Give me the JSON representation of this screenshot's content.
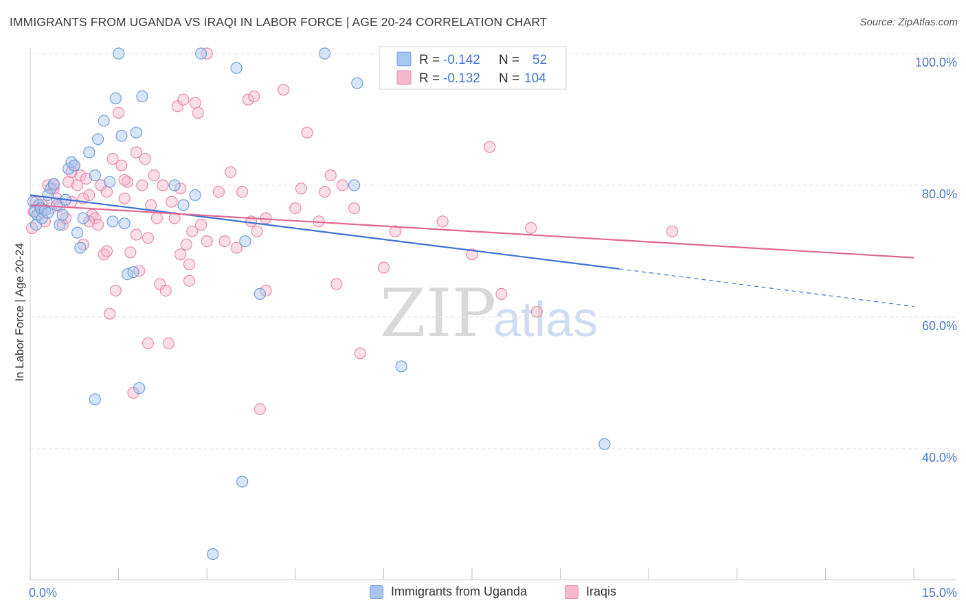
{
  "header": {
    "title": "IMMIGRANTS FROM UGANDA VS IRAQI IN LABOR FORCE | AGE 20-24 CORRELATION CHART",
    "source": "Source: ZipAtlas.com"
  },
  "colors": {
    "uganda_fill": "#a8c6ef",
    "uganda_stroke": "#6f9fdc",
    "uganda_line": "#3a72d4",
    "iraqi_fill": "#f5b8cc",
    "iraqi_stroke": "#e88aa8",
    "iraqi_line": "#e0668e",
    "tick_label": "#4a78c8",
    "grid": "#e3e3e3"
  },
  "legend": {
    "uganda": {
      "r_label": "R =",
      "r_value": "-0.142",
      "n_label": "N =",
      "n_value": "52"
    },
    "iraqi": {
      "r_label": "R =",
      "r_value": "-0.132",
      "n_label": "N =",
      "n_value": "104"
    }
  },
  "bottom_legend": {
    "uganda": "Immigrants from Uganda",
    "iraqi": "Iraqis"
  },
  "watermark": {
    "zip": "ZIP",
    "atlas": "atlas"
  },
  "chart_data": {
    "type": "scatter",
    "title": "IMMIGRANTS FROM UGANDA VS IRAQI IN LABOR FORCE | AGE 20-24 CORRELATION CHART",
    "xlabel": "",
    "ylabel": "In Labor Force | Age 20-24",
    "xlim": [
      0,
      15
    ],
    "ylim": [
      22,
      102
    ],
    "x_tick_labels": [
      {
        "value": 0,
        "label": "0.0%"
      },
      {
        "value": 15,
        "label": "15.0%"
      }
    ],
    "y_tick_labels": [
      {
        "value": 100,
        "label": "100.0%"
      },
      {
        "value": 80,
        "label": "80.0%"
      },
      {
        "value": 60,
        "label": "60.0%"
      },
      {
        "value": 40,
        "label": "40.0%"
      }
    ],
    "series": [
      {
        "name": "Immigrants from Uganda",
        "color_key": "uganda",
        "trend": {
          "x0": 0.0,
          "y0": 78.5,
          "x1": 10.0,
          "y1": 67.3,
          "dash_to_x": 15.0,
          "dash_to_y": 61.6
        },
        "points": [
          [
            0.05,
            77.5
          ],
          [
            0.08,
            76.0
          ],
          [
            0.1,
            74.0
          ],
          [
            0.12,
            75.5
          ],
          [
            0.15,
            77.0
          ],
          [
            0.18,
            76.5
          ],
          [
            0.2,
            75.0
          ],
          [
            0.25,
            76.2
          ],
          [
            0.3,
            78.5
          ],
          [
            0.35,
            79.5
          ],
          [
            0.4,
            80.2
          ],
          [
            0.45,
            77.0
          ],
          [
            0.5,
            74.0
          ],
          [
            0.55,
            75.5
          ],
          [
            0.6,
            77.8
          ],
          [
            0.65,
            82.5
          ],
          [
            0.7,
            83.5
          ],
          [
            0.75,
            83.0
          ],
          [
            0.8,
            72.8
          ],
          [
            0.85,
            70.5
          ],
          [
            0.9,
            75.0
          ],
          [
            1.0,
            85.0
          ],
          [
            1.1,
            81.5
          ],
          [
            1.15,
            87.0
          ],
          [
            1.25,
            89.8
          ],
          [
            1.35,
            80.5
          ],
          [
            1.4,
            74.5
          ],
          [
            1.45,
            93.2
          ],
          [
            1.5,
            100.0
          ],
          [
            1.55,
            87.5
          ],
          [
            1.6,
            74.2
          ],
          [
            1.65,
            66.5
          ],
          [
            1.75,
            66.8
          ],
          [
            1.8,
            88.0
          ],
          [
            1.85,
            49.2
          ],
          [
            1.9,
            93.5
          ],
          [
            2.45,
            80.0
          ],
          [
            2.6,
            77.0
          ],
          [
            2.8,
            78.5
          ],
          [
            2.9,
            100.0
          ],
          [
            3.1,
            24.0
          ],
          [
            3.5,
            97.8
          ],
          [
            3.6,
            35.0
          ],
          [
            3.65,
            71.5
          ],
          [
            3.9,
            63.5
          ],
          [
            5.0,
            100.0
          ],
          [
            5.5,
            80.0
          ],
          [
            5.55,
            95.5
          ],
          [
            6.3,
            52.5
          ],
          [
            9.75,
            40.7
          ],
          [
            1.1,
            47.5
          ],
          [
            0.3,
            75.8
          ]
        ]
      },
      {
        "name": "Iraqis",
        "color_key": "iraqi",
        "trend": {
          "x0": 0.0,
          "y0": 77.0,
          "x1": 15.0,
          "y1": 69.0
        },
        "points": [
          [
            0.03,
            73.5
          ],
          [
            0.06,
            76.0
          ],
          [
            0.1,
            77.5
          ],
          [
            0.15,
            75.5
          ],
          [
            0.2,
            77.0
          ],
          [
            0.25,
            74.5
          ],
          [
            0.3,
            80.0
          ],
          [
            0.35,
            76.5
          ],
          [
            0.4,
            79.5
          ],
          [
            0.45,
            78.0
          ],
          [
            0.5,
            76.8
          ],
          [
            0.55,
            74.0
          ],
          [
            0.6,
            75.0
          ],
          [
            0.65,
            80.5
          ],
          [
            0.7,
            77.5
          ],
          [
            0.75,
            83.0
          ],
          [
            0.8,
            80.0
          ],
          [
            0.85,
            81.5
          ],
          [
            0.9,
            71.0
          ],
          [
            0.95,
            81.0
          ],
          [
            1.0,
            78.5
          ],
          [
            1.05,
            75.5
          ],
          [
            1.1,
            75.0
          ],
          [
            1.15,
            74.0
          ],
          [
            1.2,
            80.0
          ],
          [
            1.25,
            69.5
          ],
          [
            1.3,
            79.0
          ],
          [
            1.35,
            60.5
          ],
          [
            1.4,
            84.0
          ],
          [
            1.45,
            64.0
          ],
          [
            1.5,
            91.0
          ],
          [
            1.55,
            83.0
          ],
          [
            1.6,
            78.0
          ],
          [
            1.65,
            80.5
          ],
          [
            1.7,
            69.8
          ],
          [
            1.75,
            48.5
          ],
          [
            1.8,
            85.0
          ],
          [
            1.85,
            67.0
          ],
          [
            1.9,
            80.0
          ],
          [
            1.95,
            84.0
          ],
          [
            2.0,
            56.0
          ],
          [
            2.05,
            77.0
          ],
          [
            2.1,
            81.5
          ],
          [
            2.15,
            75.0
          ],
          [
            2.2,
            65.0
          ],
          [
            2.25,
            80.0
          ],
          [
            2.3,
            64.0
          ],
          [
            2.35,
            56.0
          ],
          [
            2.4,
            77.5
          ],
          [
            2.45,
            75.0
          ],
          [
            2.5,
            92.0
          ],
          [
            2.55,
            79.5
          ],
          [
            2.6,
            93.0
          ],
          [
            2.65,
            71.0
          ],
          [
            2.7,
            65.5
          ],
          [
            2.75,
            73.0
          ],
          [
            2.8,
            92.5
          ],
          [
            2.85,
            91.0
          ],
          [
            2.9,
            74.0
          ],
          [
            3.0,
            71.5
          ],
          [
            3.2,
            79.0
          ],
          [
            3.3,
            71.5
          ],
          [
            3.4,
            82.0
          ],
          [
            3.5,
            70.5
          ],
          [
            3.6,
            79.0
          ],
          [
            3.7,
            93.0
          ],
          [
            3.75,
            74.5
          ],
          [
            3.8,
            93.5
          ],
          [
            3.85,
            73.0
          ],
          [
            3.9,
            46.0
          ],
          [
            4.0,
            64.0
          ],
          [
            4.3,
            94.5
          ],
          [
            4.5,
            76.5
          ],
          [
            4.6,
            79.5
          ],
          [
            4.7,
            88.0
          ],
          [
            4.9,
            74.5
          ],
          [
            5.0,
            79.0
          ],
          [
            5.1,
            81.5
          ],
          [
            5.2,
            65.0
          ],
          [
            5.3,
            80.0
          ],
          [
            5.5,
            76.5
          ],
          [
            5.6,
            54.5
          ],
          [
            6.0,
            67.5
          ],
          [
            6.2,
            73.0
          ],
          [
            7.0,
            74.5
          ],
          [
            7.5,
            69.5
          ],
          [
            7.8,
            85.8
          ],
          [
            8.0,
            63.5
          ],
          [
            8.5,
            73.5
          ],
          [
            8.6,
            60.8
          ],
          [
            10.9,
            73.0
          ],
          [
            0.4,
            80.0
          ],
          [
            1.0,
            74.5
          ],
          [
            2.0,
            72.0
          ],
          [
            3.0,
            100.0
          ],
          [
            1.3,
            70.0
          ],
          [
            0.7,
            82.0
          ],
          [
            0.2,
            76.0
          ],
          [
            2.55,
            69.5
          ],
          [
            1.6,
            80.8
          ],
          [
            4.0,
            75.0
          ],
          [
            0.9,
            78.0
          ],
          [
            1.8,
            72.5
          ],
          [
            2.7,
            68.0
          ]
        ]
      }
    ]
  }
}
